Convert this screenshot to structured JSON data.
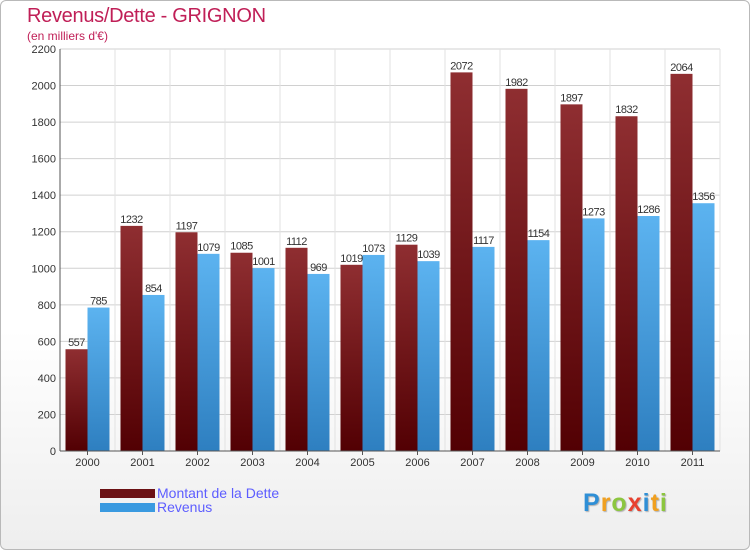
{
  "header": {
    "title": "Revenus/Dette - GRIGNON",
    "subtitle": "(en milliers d'€)"
  },
  "chart_data": {
    "type": "bar",
    "title": "Revenus/Dette - GRIGNON",
    "ylabel": "(en milliers d'€)",
    "xlabel": "",
    "ylim": [
      0,
      2200
    ],
    "yticks": [
      0,
      200,
      400,
      600,
      800,
      1000,
      1200,
      1400,
      1600,
      1800,
      2000,
      2200
    ],
    "grid": true,
    "legend_position": "bottom-left",
    "categories": [
      "2000",
      "2001",
      "2002",
      "2003",
      "2004",
      "2005",
      "2006",
      "2007",
      "2008",
      "2009",
      "2010",
      "2011"
    ],
    "series": [
      {
        "name": "Montant de la Dette",
        "color": "#7a1a1d",
        "values": [
          557,
          1232,
          1197,
          1085,
          1112,
          1019,
          1129,
          2072,
          1982,
          1897,
          1832,
          2064
        ]
      },
      {
        "name": "Revenus",
        "color": "#3a9ae0",
        "values": [
          785,
          854,
          1079,
          1001,
          969,
          1073,
          1039,
          1117,
          1154,
          1273,
          1286,
          1356
        ]
      }
    ]
  },
  "legend": {
    "items": [
      {
        "label": "Montant de la Dette",
        "color": "#6b1114"
      },
      {
        "label": "Revenus",
        "color": "#3a9ae0"
      }
    ]
  },
  "branding": {
    "letters": [
      {
        "ch": "P",
        "color": "#2f8fd6"
      },
      {
        "ch": "r",
        "color": "#f0a020"
      },
      {
        "ch": "o",
        "color": "#8cc63f"
      },
      {
        "ch": "x",
        "color": "#e8412e"
      },
      {
        "ch": "i",
        "color": "#2f8fd6"
      },
      {
        "ch": "t",
        "color": "#f0a020"
      },
      {
        "ch": "i",
        "color": "#8cc63f"
      }
    ]
  }
}
